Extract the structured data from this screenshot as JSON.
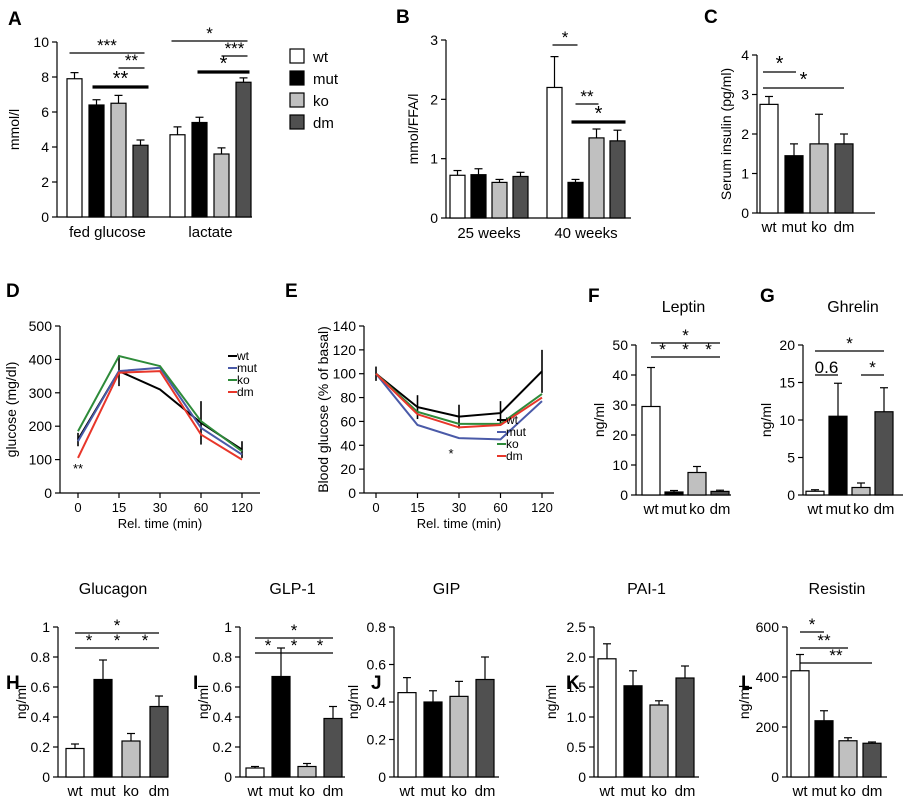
{
  "colors": {
    "wt": "#ffffff",
    "mut": "#000000",
    "ko": "#c0c0c0",
    "dm": "#505050",
    "line_wt": "#000000",
    "line_mut": "#4a5aa8",
    "line_ko": "#2e8b3a",
    "line_dm": "#e8362a"
  },
  "chart_data": [
    {
      "panel": "A",
      "type": "bar",
      "title": "",
      "ylabel": "mmol/l",
      "ylim": [
        0,
        10
      ],
      "yticks": [
        "0",
        "2",
        "4",
        "6",
        "8",
        "10"
      ],
      "categories": [
        "fed glucose",
        "lactate"
      ],
      "series": [
        {
          "name": "wt",
          "values": [
            7.9,
            4.7
          ],
          "err": [
            0.35,
            0.45
          ]
        },
        {
          "name": "mut",
          "values": [
            6.4,
            5.4
          ],
          "err": [
            0.3,
            0.3
          ]
        },
        {
          "name": "ko",
          "values": [
            6.5,
            3.6
          ],
          "err": [
            0.45,
            0.35
          ]
        },
        {
          "name": "dm",
          "values": [
            4.1,
            7.7
          ],
          "err": [
            0.3,
            0.25
          ]
        }
      ],
      "legend": [
        "wt",
        "mut",
        "ko",
        "dm"
      ],
      "significance": [
        "***",
        "**",
        "**",
        "*",
        "***",
        "*"
      ]
    },
    {
      "panel": "B",
      "type": "bar",
      "title": "",
      "ylabel": "mmol/FFA/l",
      "ylim": [
        0,
        3
      ],
      "yticks": [
        "0",
        "1",
        "2",
        "3"
      ],
      "categories": [
        "25 weeks",
        "40 weeks"
      ],
      "series": [
        {
          "name": "wt",
          "values": [
            0.72,
            2.2
          ],
          "err": [
            0.08,
            0.52
          ]
        },
        {
          "name": "mut",
          "values": [
            0.73,
            0.6
          ],
          "err": [
            0.1,
            0.05
          ]
        },
        {
          "name": "ko",
          "values": [
            0.6,
            1.35
          ],
          "err": [
            0.05,
            0.15
          ]
        },
        {
          "name": "dm",
          "values": [
            0.7,
            1.3
          ],
          "err": [
            0.07,
            0.18
          ]
        }
      ],
      "significance": [
        "*",
        "**",
        "*"
      ]
    },
    {
      "panel": "C",
      "type": "bar",
      "title": "",
      "ylabel": "Serum insulin (pg/ml)",
      "ylim": [
        0,
        4
      ],
      "yticks": [
        "0",
        "1",
        "2",
        "3",
        "4"
      ],
      "categories": [
        "wt",
        "mut",
        "ko",
        "dm"
      ],
      "values": [
        2.75,
        1.45,
        1.75,
        1.75
      ],
      "err": [
        0.2,
        0.3,
        0.75,
        0.25
      ],
      "significance": [
        "*",
        "*"
      ]
    },
    {
      "panel": "D",
      "type": "line",
      "title": "",
      "ylabel": "glucose (mg/dl)",
      "xlabel": "Rel. time (min)",
      "ylim": [
        0,
        500
      ],
      "yticks": [
        "0",
        "100",
        "200",
        "300",
        "400",
        "500"
      ],
      "x": [
        "0",
        "15",
        "30",
        "60",
        "120"
      ],
      "series": [
        {
          "name": "wt",
          "values": [
            160,
            365,
            310,
            210,
            130
          ],
          "err": [
            20,
            45,
            0,
            65,
            25
          ]
        },
        {
          "name": "mut",
          "values": [
            155,
            365,
            375,
            195,
            115
          ],
          "err": [
            0,
            0,
            0,
            0,
            0
          ]
        },
        {
          "name": "ko",
          "values": [
            185,
            410,
            380,
            215,
            125
          ],
          "err": [
            0,
            0,
            0,
            0,
            0
          ]
        },
        {
          "name": "dm",
          "values": [
            105,
            360,
            365,
            175,
            100
          ],
          "err": [
            0,
            0,
            0,
            0,
            0
          ]
        }
      ],
      "annotation": "**"
    },
    {
      "panel": "E",
      "type": "line",
      "title": "",
      "ylabel": "Blood glucose (% of basal)",
      "xlabel": "Rel. time (min)",
      "ylim": [
        0,
        140
      ],
      "yticks": [
        "0",
        "20",
        "40",
        "60",
        "80",
        "100",
        "120",
        "140"
      ],
      "x": [
        "0",
        "15",
        "30",
        "60",
        "120"
      ],
      "series": [
        {
          "name": "wt",
          "values": [
            100,
            72,
            64,
            67,
            102
          ],
          "err": [
            6,
            10,
            10,
            10,
            18
          ]
        },
        {
          "name": "mut",
          "values": [
            100,
            57,
            46,
            45,
            77
          ],
          "err": [
            0,
            0,
            0,
            0,
            0
          ]
        },
        {
          "name": "ko",
          "values": [
            100,
            68,
            58,
            58,
            83
          ],
          "err": [
            0,
            0,
            0,
            0,
            0
          ]
        },
        {
          "name": "dm",
          "values": [
            100,
            66,
            55,
            57,
            80
          ],
          "err": [
            0,
            0,
            0,
            0,
            0
          ]
        }
      ],
      "annotation": "*"
    },
    {
      "panel": "F",
      "type": "bar",
      "title": "Leptin",
      "ylabel": "ng/ml",
      "ylim": [
        0,
        50
      ],
      "yticks": [
        "0",
        "10",
        "20",
        "30",
        "40",
        "50"
      ],
      "categories": [
        "wt",
        "mut",
        "ko",
        "dm"
      ],
      "values": [
        29.5,
        1.0,
        7.5,
        1.2
      ],
      "err": [
        13,
        0.5,
        2,
        0.4
      ],
      "significance": [
        "*",
        "*",
        "*",
        "*"
      ]
    },
    {
      "panel": "G",
      "type": "bar",
      "title": "Ghrelin",
      "ylabel": "ng/ml",
      "ylim": [
        0,
        20
      ],
      "yticks": [
        "0",
        "5",
        "10",
        "15",
        "20"
      ],
      "categories": [
        "wt",
        "mut",
        "ko",
        "dm"
      ],
      "values": [
        0.5,
        10.5,
        1.0,
        11.1
      ],
      "err": [
        0.2,
        4.4,
        0.6,
        3.2
      ],
      "significance": [
        "*",
        "0.6",
        "*"
      ]
    },
    {
      "panel": "H",
      "type": "bar",
      "title": "Glucagon",
      "ylabel": "ng/ml",
      "ylim": [
        0,
        1
      ],
      "yticks": [
        "0",
        "0.2",
        "0.4",
        "0.6",
        "0.8",
        "1"
      ],
      "categories": [
        "wt",
        "mut",
        "ko",
        "dm"
      ],
      "values": [
        0.19,
        0.65,
        0.24,
        0.47
      ],
      "err": [
        0.03,
        0.13,
        0.05,
        0.07
      ],
      "significance": [
        "*",
        "*",
        "*",
        "*"
      ]
    },
    {
      "panel": "I",
      "type": "bar",
      "title": "GLP-1",
      "ylabel": "ng/ml",
      "ylim": [
        0,
        1
      ],
      "yticks": [
        "0",
        "0.2",
        "0.4",
        "0.6",
        "0.8",
        "1"
      ],
      "categories": [
        "wt",
        "mut",
        "ko",
        "dm"
      ],
      "values": [
        0.06,
        0.67,
        0.07,
        0.39
      ],
      "err": [
        0.01,
        0.19,
        0.02,
        0.08
      ],
      "significance": [
        "*",
        "*",
        "*",
        "*"
      ]
    },
    {
      "panel": "J",
      "type": "bar",
      "title": "GIP",
      "ylabel": "ng/ml",
      "ylim": [
        0,
        0.8
      ],
      "yticks": [
        "0",
        "0.2",
        "0.4",
        "0.6",
        "0.8"
      ],
      "categories": [
        "wt",
        "mut",
        "ko",
        "dm"
      ],
      "values": [
        0.45,
        0.4,
        0.43,
        0.52
      ],
      "err": [
        0.08,
        0.06,
        0.08,
        0.12
      ]
    },
    {
      "panel": "K",
      "type": "bar",
      "title": "PAI-1",
      "ylabel": "ng/ml",
      "ylim": [
        0,
        2.5
      ],
      "yticks": [
        "0",
        "0.5",
        "1.0",
        "1.5",
        "2.0",
        "2.5"
      ],
      "categories": [
        "wt",
        "mut",
        "ko",
        "dm"
      ],
      "values": [
        1.97,
        1.52,
        1.2,
        1.65
      ],
      "err": [
        0.25,
        0.25,
        0.07,
        0.2
      ]
    },
    {
      "panel": "L",
      "type": "bar",
      "title": "Resistin",
      "ylabel": "ng/ml",
      "ylim": [
        0,
        600
      ],
      "yticks": [
        "0",
        "200",
        "400",
        "600"
      ],
      "categories": [
        "wt",
        "mut",
        "ko",
        "dm"
      ],
      "values": [
        425,
        225,
        145,
        135
      ],
      "err": [
        65,
        40,
        12,
        5
      ],
      "significance": [
        "*",
        "**",
        "**"
      ]
    }
  ]
}
